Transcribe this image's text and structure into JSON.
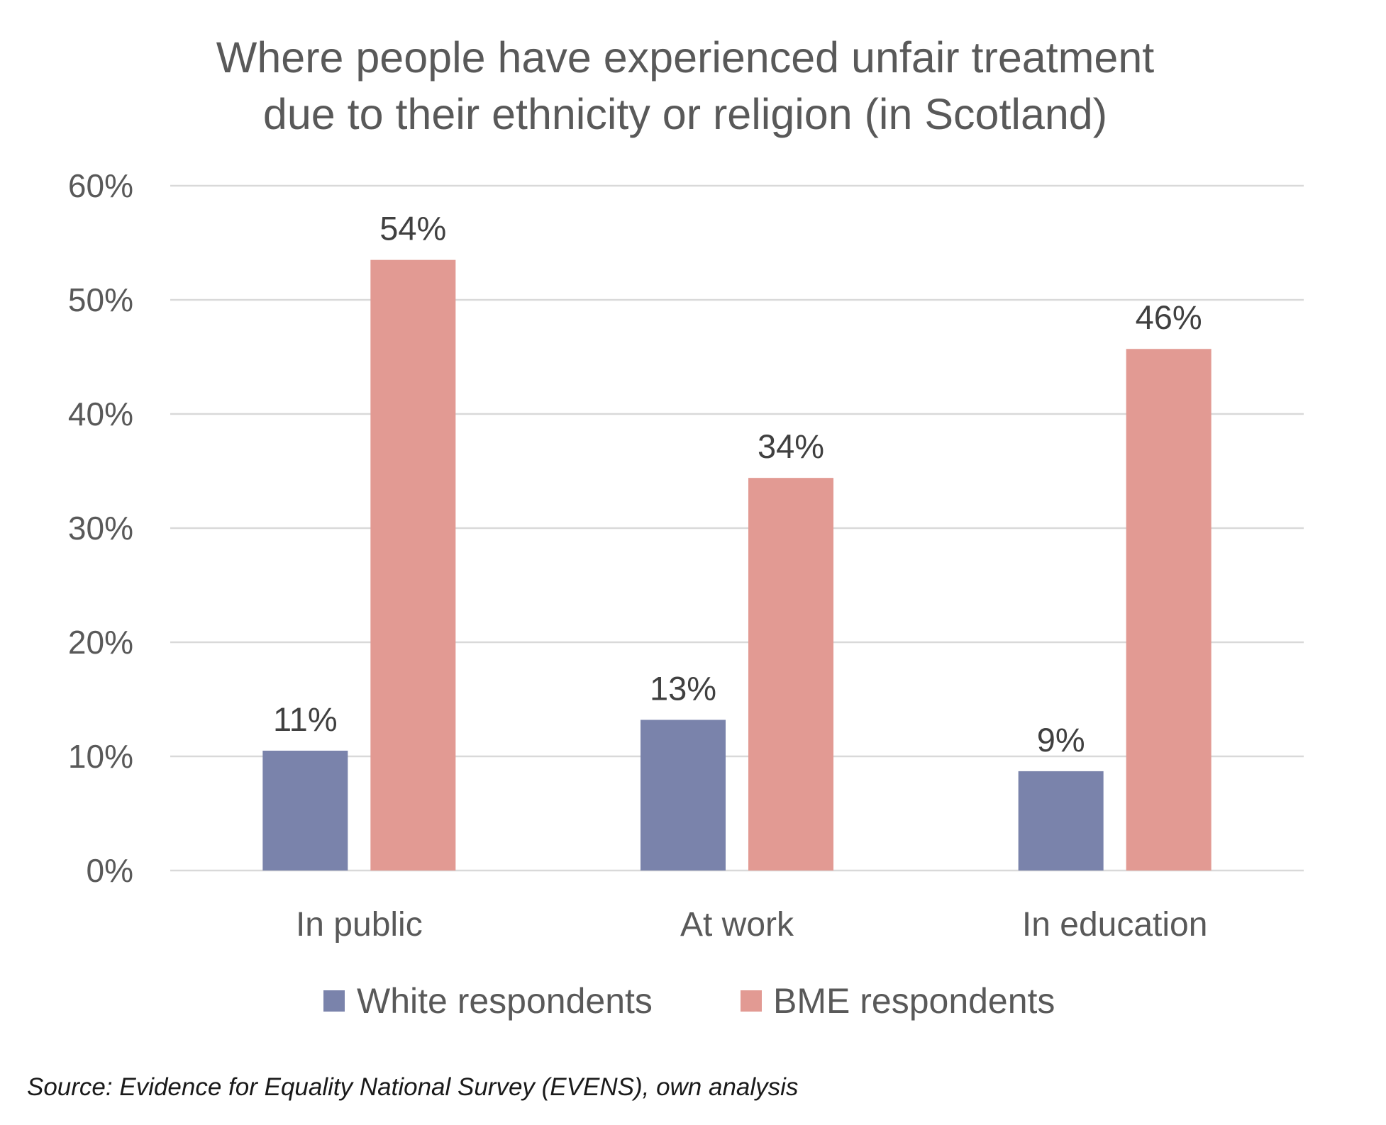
{
  "chart_data": {
    "type": "bar",
    "title_lines": [
      "Where people have experienced unfair treatment",
      "due to their ethnicity or religion (in Scotland)"
    ],
    "categories": [
      "In public",
      "At work",
      "In education"
    ],
    "series": [
      {
        "name": "White respondents",
        "color": "#7a83ab",
        "values": [
          10.5,
          13.2,
          8.7
        ],
        "labels": [
          "11%",
          "13%",
          "9%"
        ]
      },
      {
        "name": "BME respondents",
        "color": "#e29a93",
        "values": [
          53.5,
          34.4,
          45.7
        ],
        "labels": [
          "54%",
          "34%",
          "46%"
        ]
      }
    ],
    "yticks": [
      {
        "value": 0,
        "label": "0%"
      },
      {
        "value": 10,
        "label": "10%"
      },
      {
        "value": 20,
        "label": "20%"
      },
      {
        "value": 30,
        "label": "30%"
      },
      {
        "value": 40,
        "label": "40%"
      },
      {
        "value": 50,
        "label": "50%"
      },
      {
        "value": 60,
        "label": "60%"
      }
    ],
    "ylim": [
      0,
      60
    ],
    "xlabel": "",
    "ylabel": "",
    "grid": true,
    "legend_position": "bottom",
    "gridline_color": "#d9d9d9",
    "text_color": "#595959",
    "source": "Source: Evidence for Equality National Survey (EVENS), own analysis"
  }
}
